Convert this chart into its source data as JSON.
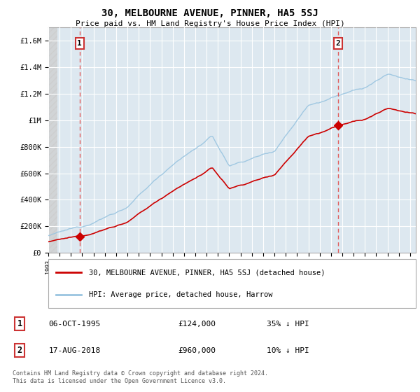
{
  "title": "30, MELBOURNE AVENUE, PINNER, HA5 5SJ",
  "subtitle": "Price paid vs. HM Land Registry's House Price Index (HPI)",
  "hpi_color": "#99c4e0",
  "property_color": "#cc0000",
  "dashed_line_color": "#e06060",
  "marker_color": "#cc0000",
  "background_plot_color": "#dde8f0",
  "grid_color": "#ffffff",
  "legend_label_property": "30, MELBOURNE AVENUE, PINNER, HA5 5SJ (detached house)",
  "legend_label_hpi": "HPI: Average price, detached house, Harrow",
  "point1_label": "1",
  "point1_date": "06-OCT-1995",
  "point1_price": "£124,000",
  "point1_hpi": "35% ↓ HPI",
  "point2_label": "2",
  "point2_date": "17-AUG-2018",
  "point2_price": "£960,000",
  "point2_hpi": "10% ↓ HPI",
  "footer": "Contains HM Land Registry data © Crown copyright and database right 2024.\nThis data is licensed under the Open Government Licence v3.0.",
  "ylim": [
    0,
    1700000
  ],
  "yticks": [
    0,
    200000,
    400000,
    600000,
    800000,
    1000000,
    1200000,
    1400000,
    1600000
  ],
  "ytick_labels": [
    "£0",
    "£200K",
    "£400K",
    "£600K",
    "£800K",
    "£1M",
    "£1.2M",
    "£1.4M",
    "£1.6M"
  ],
  "xmin": 1993,
  "xmax": 2025.5,
  "point1_x": 1995.77,
  "point1_y": 124000,
  "point2_x": 2018.63,
  "point2_y": 960000
}
